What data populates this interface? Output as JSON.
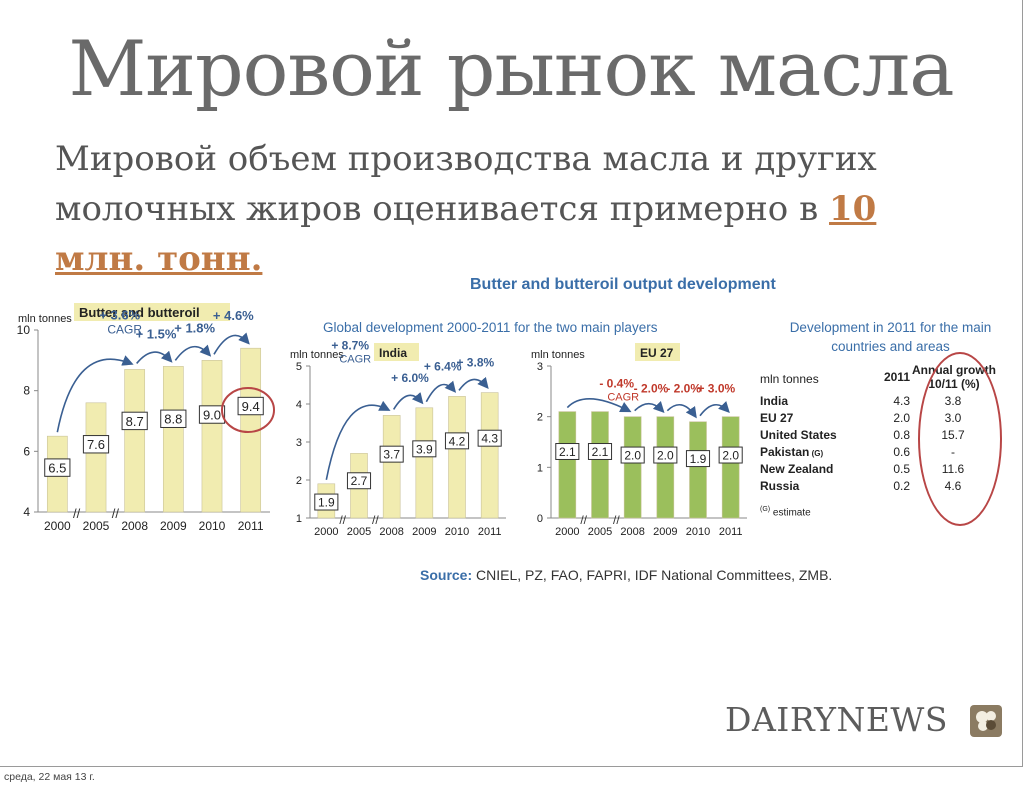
{
  "slide": {
    "title": "Мировой рынок масла",
    "subtitle_text": "Мировой объем производства масла и других молочных жиров оценивается примерно в ",
    "subtitle_highlight": "10 млн. тонн.",
    "footer_date": "среда, 22 мая 13 г.",
    "logo_text": "DAIRYNEWS"
  },
  "figure": {
    "main_heading": "Butter and butteroil output development",
    "sub_heading": "Global development 2000-2011 for the two main players",
    "source_label": "Source:",
    "source_text": " CNIEL, PZ, FAO, FAPRI, IDF National Committees, ZMB."
  },
  "colors": {
    "bar_yellow": "#f1ecb0",
    "bar_green": "#9bbf5c",
    "arrow": "#3a5f92",
    "growth_red": "#c0392b",
    "highlight_oval": "#b84646",
    "heading_blue": "#3a6ea8"
  },
  "chart_data": [
    {
      "type": "bar",
      "title": "Butter and butteroil",
      "ylabel": "mln tonnes",
      "categories": [
        "2000",
        "2005",
        "2008",
        "2009",
        "2010",
        "2011"
      ],
      "values": [
        6.5,
        7.6,
        8.7,
        8.8,
        9.0,
        9.4
      ],
      "value_labels": [
        "6.5",
        "7.6",
        "8.7",
        "8.8",
        "9.0",
        "9.4"
      ],
      "yticks": [
        "4",
        "6",
        "8",
        "10"
      ],
      "ylim": [
        4,
        10
      ],
      "annotations": [
        "+ 3.6%",
        "CAGR",
        "+ 1.5%",
        "+ 1.8%",
        "+ 4.6%"
      ]
    },
    {
      "type": "bar",
      "title": "India",
      "ylabel": "mln tonnes",
      "categories": [
        "2000",
        "2005",
        "2008",
        "2009",
        "2010",
        "2011"
      ],
      "values": [
        1.9,
        2.7,
        3.7,
        3.9,
        4.2,
        4.3
      ],
      "value_labels": [
        "1.9",
        "2.7",
        "3.7",
        "3.9",
        "4.2",
        "4.3"
      ],
      "yticks": [
        "1",
        "2",
        "3",
        "4",
        "5"
      ],
      "ylim": [
        1,
        5
      ],
      "annotations": [
        "+ 8.7%",
        "CAGR",
        "+ 6.0%",
        "+ 6.4%",
        "+ 3.8%"
      ]
    },
    {
      "type": "bar",
      "title": "EU 27",
      "ylabel": "mln tonnes",
      "categories": [
        "2000",
        "2005",
        "2008",
        "2009",
        "2010",
        "2011"
      ],
      "values": [
        2.1,
        2.1,
        2.0,
        2.0,
        1.9,
        2.0
      ],
      "value_labels": [
        "2.1",
        "2.1",
        "2.0",
        "2.0",
        "1.9",
        "2.0"
      ],
      "yticks": [
        "0",
        "1",
        "2",
        "3"
      ],
      "ylim": [
        0,
        3
      ],
      "annotations": [
        "- 0.4%",
        "CAGR",
        "- 2.0%",
        "- 2.0%",
        "+ 3.0%"
      ]
    },
    {
      "type": "table",
      "title": "Development in 2011 for the main countries and areas",
      "unit": "mln tonnes",
      "columns": [
        "2011",
        "Annual growth 10/11 (%)"
      ],
      "rows": [
        {
          "name": "India",
          "value": "4.3",
          "growth": "3.8"
        },
        {
          "name": "EU 27",
          "value": "2.0",
          "growth": "3.0"
        },
        {
          "name": "United States",
          "value": "0.8",
          "growth": "15.7"
        },
        {
          "name": "Pakistan",
          "mark": "(G)",
          "value": "0.6",
          "growth": "-"
        },
        {
          "name": "New Zealand",
          "value": "0.5",
          "growth": "11.6"
        },
        {
          "name": "Russia",
          "value": "0.2",
          "growth": "4.6"
        }
      ],
      "note_mark": "(G)",
      "note": " estimate"
    }
  ]
}
